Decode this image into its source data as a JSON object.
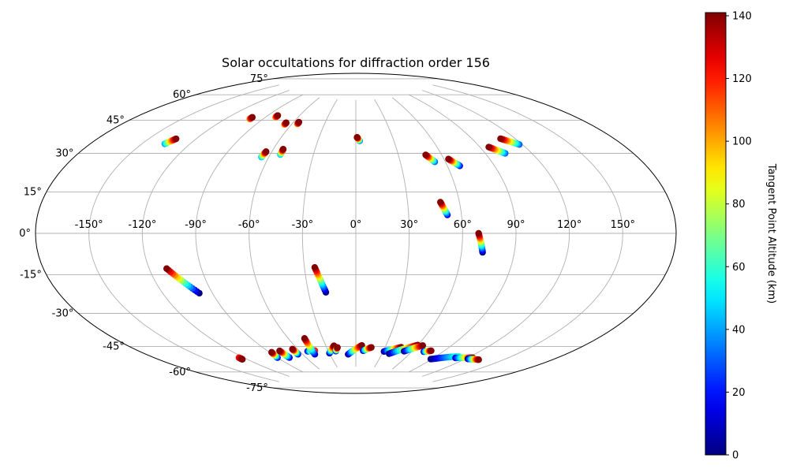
{
  "chart_data": {
    "type": "scatter",
    "projection": "aitoff",
    "title": "Solar occultations for diffraction order 156",
    "x_ticks": [
      "-150°",
      "-120°",
      "-90°",
      "-60°",
      "-30°",
      "0°",
      "30°",
      "60°",
      "90°",
      "120°",
      "150°"
    ],
    "y_ticks": [
      "-75°",
      "-60°",
      "-45°",
      "-30°",
      "-15°",
      "0°",
      "15°",
      "30°",
      "45°",
      "60°",
      "75°"
    ],
    "x_range": [
      -180,
      180
    ],
    "y_range": [
      -90,
      90
    ],
    "grid": true,
    "colorbar": {
      "label": "Tangent Point Altitude (km)",
      "range": [
        0,
        141
      ],
      "ticks": [
        "0",
        "20",
        "40",
        "60",
        "80",
        "100",
        "120",
        "140"
      ],
      "colormap": "jet"
    },
    "tracks": [
      {
        "lon0": -136,
        "lat0": 41,
        "lon1": -133,
        "lat1": 44,
        "alt0": 40,
        "alt1": 140
      },
      {
        "lon0": -101,
        "lat0": 59,
        "lon1": -101,
        "lat1": 60,
        "alt0": 100,
        "alt1": 140
      },
      {
        "lon0": -81,
        "lat0": 62,
        "lon1": -81,
        "lat1": 63,
        "alt0": 100,
        "alt1": 140
      },
      {
        "lon0": -66,
        "lat0": 59,
        "lon1": -66,
        "lat1": 60,
        "alt0": 100,
        "alt1": 140
      },
      {
        "lon0": -55,
        "lat0": 60,
        "lon1": -55,
        "lat1": 61,
        "alt0": 100,
        "alt1": 140
      },
      {
        "lon0": -65,
        "lat0": 41,
        "lon1": -64,
        "lat1": 44,
        "alt0": 40,
        "alt1": 140
      },
      {
        "lon0": -53,
        "lat0": 43,
        "lon1": -53,
        "lat1": 46,
        "alt0": 40,
        "alt1": 140
      },
      {
        "lon0": 3,
        "lat0": 52,
        "lon1": 1,
        "lat1": 54,
        "alt0": 30,
        "alt1": 140
      },
      {
        "lon0": 53,
        "lat0": 39,
        "lon1": 49,
        "lat1": 43,
        "alt0": 30,
        "alt1": 140
      },
      {
        "lon0": 68,
        "lat0": 36,
        "lon1": 63,
        "lat1": 40,
        "alt0": 15,
        "alt1": 140
      },
      {
        "lon0": 103,
        "lat0": 40,
        "lon1": 96,
        "lat1": 44,
        "alt0": 30,
        "alt1": 140
      },
      {
        "lon0": 118,
        "lat0": 43,
        "lon1": 110,
        "lat1": 47,
        "alt0": 30,
        "alt1": 140
      },
      {
        "lon0": 52,
        "lat0": 10,
        "lon1": 49,
        "lat1": 17,
        "alt0": 15,
        "alt1": 140
      },
      {
        "lon0": 72,
        "lat0": -10,
        "lon1": 69,
        "lat1": 0,
        "alt0": 0,
        "alt1": 141
      },
      {
        "lon0": -98,
        "lat0": -30,
        "lon1": -110,
        "lat1": -17,
        "alt0": 0,
        "alt1": 141
      },
      {
        "lon0": -19,
        "lat0": -33,
        "lon1": -24,
        "lat1": -19,
        "alt0": 0,
        "alt1": 141
      },
      {
        "lon0": -124,
        "lat0": -62,
        "lon1": -124,
        "lat1": -63,
        "alt0": 120,
        "alt1": 140
      },
      {
        "lon0": -90,
        "lat0": -66,
        "lon1": -88,
        "lat1": -63,
        "alt0": 10,
        "alt1": 140
      },
      {
        "lon0": -78,
        "lat0": -67,
        "lon1": -79,
        "lat1": -63,
        "alt0": 10,
        "alt1": 140
      },
      {
        "lon0": -65,
        "lat0": -66,
        "lon1": -65,
        "lat1": -63,
        "alt0": 10,
        "alt1": 140
      },
      {
        "lon0": -52,
        "lat0": -65,
        "lon1": -44,
        "lat1": -65,
        "alt0": 10,
        "alt1": 120
      },
      {
        "lon0": -47,
        "lat0": -67,
        "lon1": -46,
        "lat1": -58,
        "alt0": 10,
        "alt1": 141
      },
      {
        "lon0": -30,
        "lat0": -67,
        "lon1": -22,
        "lat1": -63,
        "alt0": 0,
        "alt1": 141
      },
      {
        "lon0": -22,
        "lat0": -66,
        "lon1": -19,
        "lat1": -64,
        "alt0": 10,
        "alt1": 140
      },
      {
        "lon0": -9,
        "lat0": -68,
        "lon1": 6,
        "lat1": -63,
        "alt0": 0,
        "alt1": 141
      },
      {
        "lon0": 8,
        "lat0": -66,
        "lon1": 16,
        "lat1": -64,
        "alt0": 10,
        "alt1": 140
      },
      {
        "lon0": 31,
        "lat0": -66,
        "lon1": 46,
        "lat1": -63,
        "alt0": 0,
        "alt1": 141
      },
      {
        "lon0": 38,
        "lat0": -67,
        "lon1": 60,
        "lat1": -61,
        "alt0": 0,
        "alt1": 141
      },
      {
        "lon0": 52,
        "lat0": -65,
        "lon1": 65,
        "lat1": -61,
        "alt0": 0,
        "alt1": 141
      },
      {
        "lon0": 72,
        "lat0": -64,
        "lon1": 78,
        "lat1": -63,
        "alt0": 10,
        "alt1": 140
      },
      {
        "lon0": 89,
        "lat0": -67,
        "lon1": 110,
        "lat1": -63,
        "alt0": 0,
        "alt1": 60
      },
      {
        "lon0": 110,
        "lat0": -64,
        "lon1": 124,
        "lat1": -62,
        "alt0": 10,
        "alt1": 141
      },
      {
        "lon0": 122,
        "lat0": -63,
        "lon1": 132,
        "lat1": -62,
        "alt0": 0,
        "alt1": 140
      }
    ]
  }
}
